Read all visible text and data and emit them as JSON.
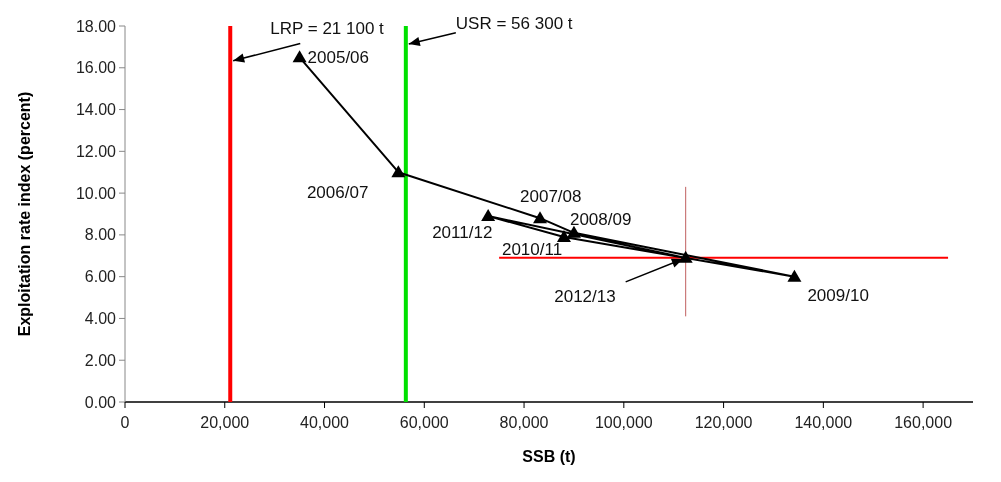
{
  "chart_data": {
    "type": "line",
    "xlabel": "SSB (t)",
    "ylabel": "Exploitation rate index (percent)",
    "xlim": [
      0,
      170000
    ],
    "xticks": [
      {
        "value": 0,
        "label": "0"
      },
      {
        "value": 20000,
        "label": "20,000"
      },
      {
        "value": 40000,
        "label": "40,000"
      },
      {
        "value": 60000,
        "label": "60,000"
      },
      {
        "value": 80000,
        "label": "80,000"
      },
      {
        "value": 100000,
        "label": "100,000"
      },
      {
        "value": 120000,
        "label": "120,000"
      },
      {
        "value": 140000,
        "label": "140,000"
      },
      {
        "value": 160000,
        "label": "160,000"
      }
    ],
    "ylim": [
      0,
      18
    ],
    "yticks": [
      {
        "value": 0,
        "label": "0.00"
      },
      {
        "value": 2,
        "label": "2.00"
      },
      {
        "value": 4,
        "label": "4.00"
      },
      {
        "value": 6,
        "label": "6.00"
      },
      {
        "value": 8,
        "label": "8.00"
      },
      {
        "value": 10,
        "label": "10.00"
      },
      {
        "value": 12,
        "label": "12.00"
      },
      {
        "value": 14,
        "label": "14.00"
      },
      {
        "value": 16,
        "label": "16.00"
      },
      {
        "value": 18,
        "label": "18.00"
      }
    ],
    "grid": false,
    "series": [
      {
        "color": "#000000",
        "marker": "triangle",
        "x": [
          35000,
          54800,
          83200,
          90000,
          134200,
          88000,
          72800,
          112400
        ],
        "values": [
          16.5,
          11.0,
          8.8,
          8.1,
          6.0,
          7.9,
          8.9,
          6.9
        ]
      },
      {
        "color": "#ff0000",
        "marker": "none",
        "x": [
          75000,
          165000
        ],
        "values": [
          6.9,
          6.9
        ]
      },
      {
        "color": "#c06060",
        "marker": "none",
        "x": [
          112400,
          112400
        ],
        "values": [
          4.1,
          10.3
        ]
      }
    ],
    "ref_lines": [
      {
        "axis": "x",
        "value": 21100,
        "color": "#ff0000"
      },
      {
        "axis": "x",
        "value": 56300,
        "color": "#00e000"
      }
    ],
    "annotations": [
      {
        "text": "LRP = 21 100 t",
        "x": 21100,
        "y": 16.3
      },
      {
        "text": "USR = 56 300 t",
        "x": 56300,
        "y": 17.1
      },
      {
        "text": "2005/06",
        "x": 35000,
        "y": 16.5
      },
      {
        "text": "2006/07",
        "x": 54800,
        "y": 11.0
      },
      {
        "text": "2007/08",
        "x": 83200,
        "y": 8.8
      },
      {
        "text": "2008/09",
        "x": 90000,
        "y": 8.1
      },
      {
        "text": "2009/10",
        "x": 134200,
        "y": 6.0
      },
      {
        "text": "2010/11",
        "x": 88000,
        "y": 7.9
      },
      {
        "text": "2011/12",
        "x": 72800,
        "y": 8.9
      },
      {
        "text": "2012/13",
        "x": 112400,
        "y": 6.9
      }
    ]
  }
}
